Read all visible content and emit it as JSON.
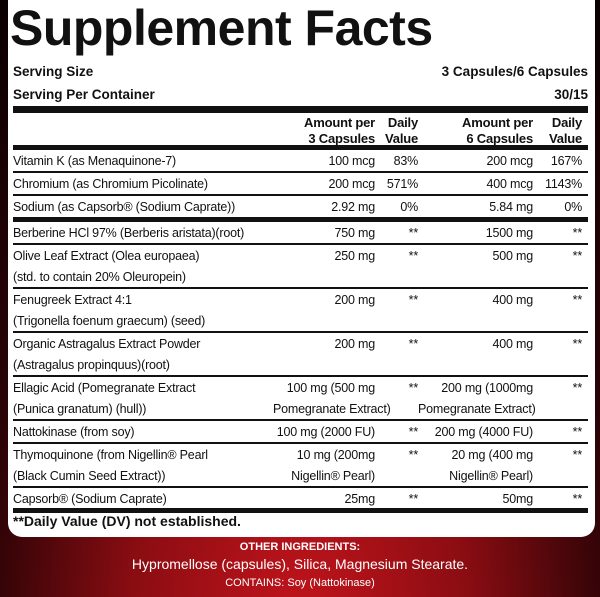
{
  "title": "Supplement Facts",
  "serving": {
    "size_label": "Serving Size",
    "size_value": "3 Capsules/6 Capsules",
    "per_container_label": "Serving Per Container",
    "per_container_value": "30/15"
  },
  "header": {
    "amt3": [
      "Amount per",
      "3 Capsules"
    ],
    "dv3": [
      "Daily",
      "Value"
    ],
    "amt6": [
      "Amount per",
      "6 Capsules"
    ],
    "dv6": [
      "Daily",
      "Value"
    ]
  },
  "rows": [
    {
      "name": [
        "Vitamin K (as Menaquinone-7)"
      ],
      "amt3": [
        "100 mcg"
      ],
      "dv3": "83%",
      "amt6": [
        "200 mcg"
      ],
      "dv6": "167%"
    },
    {
      "name": [
        "Chromium (as Chromium Picolinate)"
      ],
      "amt3": [
        "200 mcg"
      ],
      "dv3": "571%",
      "amt6": [
        "400 mcg"
      ],
      "dv6": "1143%"
    },
    {
      "name": [
        "Sodium (as Capsorb® (Sodium Caprate))"
      ],
      "amt3": [
        "2.92 mg"
      ],
      "dv3": "0%",
      "amt6": [
        "5.84 mg"
      ],
      "dv6": "0%"
    },
    {
      "name": [
        "Berberine HCl 97% (Berberis aristata)(root)"
      ],
      "amt3": [
        "750 mg"
      ],
      "dv3": "**",
      "amt6": [
        "1500 mg"
      ],
      "dv6": "**"
    },
    {
      "name": [
        "Olive Leaf Extract (Olea europaea)",
        "(std. to  contain 20% Oleuropein)"
      ],
      "amt3": [
        "250 mg"
      ],
      "dv3": "**",
      "amt6": [
        "500 mg"
      ],
      "dv6": "**"
    },
    {
      "name": [
        "Fenugreek Extract 4:1",
        "(Trigonella foenum graecum) (seed)"
      ],
      "amt3": [
        "200 mg"
      ],
      "dv3": "**",
      "amt6": [
        "400 mg"
      ],
      "dv6": "**"
    },
    {
      "name": [
        "Organic Astragalus Extract Powder",
        "(Astragalus propinquus)(root)"
      ],
      "amt3": [
        "200 mg"
      ],
      "dv3": "**",
      "amt6": [
        "400 mg"
      ],
      "dv6": "**"
    },
    {
      "name": [
        "Ellagic Acid (Pomegranate Extract",
        "(Punica granatum) (hull))"
      ],
      "amt3": [
        "100 mg (500 mg",
        "Pomegranate Extract)"
      ],
      "dv3": "**",
      "amt6": [
        "200 mg (1000mg",
        "Pomegranate Extract)"
      ],
      "dv6": "**"
    },
    {
      "name": [
        "Nattokinase (from soy)"
      ],
      "amt3": [
        "100 mg (2000 FU)"
      ],
      "dv3": "**",
      "amt6": [
        "200 mg (4000 FU)"
      ],
      "dv6": "**"
    },
    {
      "name": [
        "Thymoquinone (from Nigellin® Pearl",
        "(Black Cumin Seed Extract))"
      ],
      "amt3": [
        "10 mg (200mg",
        "Nigellin® Pearl)"
      ],
      "dv3": "**",
      "amt6": [
        "20 mg (400 mg",
        "Nigellin® Pearl)"
      ],
      "dv6": "**"
    },
    {
      "name": [
        "Capsorb® (Sodium Caprate)"
      ],
      "amt3": [
        "25mg"
      ],
      "dv3": "**",
      "amt6": [
        "50mg"
      ],
      "dv6": "**"
    }
  ],
  "footnote": "**Daily Value (DV) not established.",
  "other": {
    "heading": "OTHER INGREDIENTS:",
    "list": "Hypromellose (capsules), Silica,  Magnesium Stearate.",
    "contains": "CONTAINS: Soy (Nattokinase)"
  },
  "colors": {
    "background": "#8a0d12",
    "panel": "#ffffff",
    "text": "#111111"
  }
}
